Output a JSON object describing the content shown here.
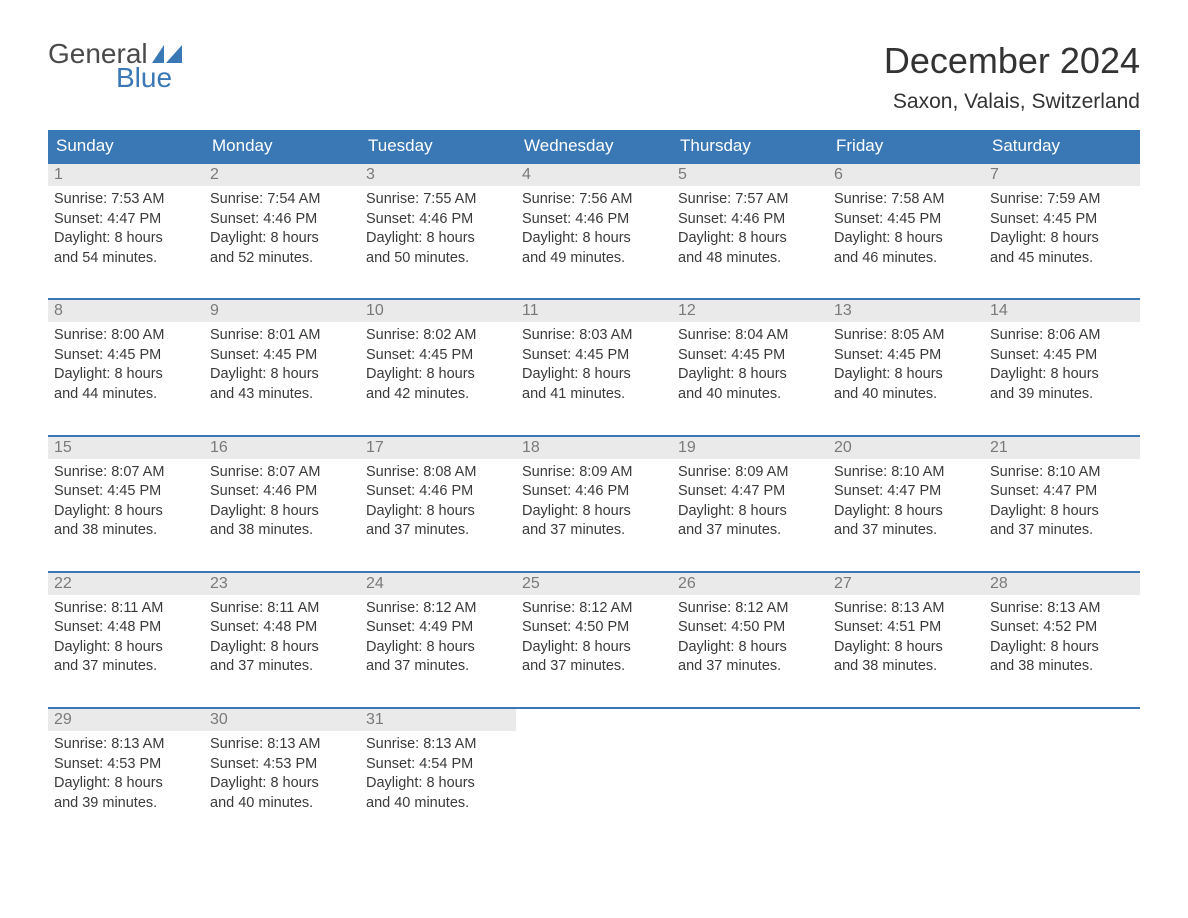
{
  "brand": {
    "general": "General",
    "blue": "Blue",
    "flag_color": "#3a78b5"
  },
  "header": {
    "month_title": "December 2024",
    "location": "Saxon, Valais, Switzerland"
  },
  "colors": {
    "header_bg": "#3a78b5",
    "week_border": "#3a78b5",
    "daynum_bg": "#eaeaea",
    "daynum_text": "#7a7a7a",
    "body_text": "#3a3a3a",
    "page_bg": "#ffffff"
  },
  "typography": {
    "month_title_fontsize": 36,
    "location_fontsize": 21,
    "dow_fontsize": 17,
    "daynum_fontsize": 16,
    "body_fontsize": 14.5
  },
  "calendar": {
    "type": "table",
    "days_of_week": [
      "Sunday",
      "Monday",
      "Tuesday",
      "Wednesday",
      "Thursday",
      "Friday",
      "Saturday"
    ],
    "weeks": [
      [
        {
          "n": "1",
          "sunrise": "Sunrise: 7:53 AM",
          "sunset": "Sunset: 4:47 PM",
          "dl1": "Daylight: 8 hours",
          "dl2": "and 54 minutes."
        },
        {
          "n": "2",
          "sunrise": "Sunrise: 7:54 AM",
          "sunset": "Sunset: 4:46 PM",
          "dl1": "Daylight: 8 hours",
          "dl2": "and 52 minutes."
        },
        {
          "n": "3",
          "sunrise": "Sunrise: 7:55 AM",
          "sunset": "Sunset: 4:46 PM",
          "dl1": "Daylight: 8 hours",
          "dl2": "and 50 minutes."
        },
        {
          "n": "4",
          "sunrise": "Sunrise: 7:56 AM",
          "sunset": "Sunset: 4:46 PM",
          "dl1": "Daylight: 8 hours",
          "dl2": "and 49 minutes."
        },
        {
          "n": "5",
          "sunrise": "Sunrise: 7:57 AM",
          "sunset": "Sunset: 4:46 PM",
          "dl1": "Daylight: 8 hours",
          "dl2": "and 48 minutes."
        },
        {
          "n": "6",
          "sunrise": "Sunrise: 7:58 AM",
          "sunset": "Sunset: 4:45 PM",
          "dl1": "Daylight: 8 hours",
          "dl2": "and 46 minutes."
        },
        {
          "n": "7",
          "sunrise": "Sunrise: 7:59 AM",
          "sunset": "Sunset: 4:45 PM",
          "dl1": "Daylight: 8 hours",
          "dl2": "and 45 minutes."
        }
      ],
      [
        {
          "n": "8",
          "sunrise": "Sunrise: 8:00 AM",
          "sunset": "Sunset: 4:45 PM",
          "dl1": "Daylight: 8 hours",
          "dl2": "and 44 minutes."
        },
        {
          "n": "9",
          "sunrise": "Sunrise: 8:01 AM",
          "sunset": "Sunset: 4:45 PM",
          "dl1": "Daylight: 8 hours",
          "dl2": "and 43 minutes."
        },
        {
          "n": "10",
          "sunrise": "Sunrise: 8:02 AM",
          "sunset": "Sunset: 4:45 PM",
          "dl1": "Daylight: 8 hours",
          "dl2": "and 42 minutes."
        },
        {
          "n": "11",
          "sunrise": "Sunrise: 8:03 AM",
          "sunset": "Sunset: 4:45 PM",
          "dl1": "Daylight: 8 hours",
          "dl2": "and 41 minutes."
        },
        {
          "n": "12",
          "sunrise": "Sunrise: 8:04 AM",
          "sunset": "Sunset: 4:45 PM",
          "dl1": "Daylight: 8 hours",
          "dl2": "and 40 minutes."
        },
        {
          "n": "13",
          "sunrise": "Sunrise: 8:05 AM",
          "sunset": "Sunset: 4:45 PM",
          "dl1": "Daylight: 8 hours",
          "dl2": "and 40 minutes."
        },
        {
          "n": "14",
          "sunrise": "Sunrise: 8:06 AM",
          "sunset": "Sunset: 4:45 PM",
          "dl1": "Daylight: 8 hours",
          "dl2": "and 39 minutes."
        }
      ],
      [
        {
          "n": "15",
          "sunrise": "Sunrise: 8:07 AM",
          "sunset": "Sunset: 4:45 PM",
          "dl1": "Daylight: 8 hours",
          "dl2": "and 38 minutes."
        },
        {
          "n": "16",
          "sunrise": "Sunrise: 8:07 AM",
          "sunset": "Sunset: 4:46 PM",
          "dl1": "Daylight: 8 hours",
          "dl2": "and 38 minutes."
        },
        {
          "n": "17",
          "sunrise": "Sunrise: 8:08 AM",
          "sunset": "Sunset: 4:46 PM",
          "dl1": "Daylight: 8 hours",
          "dl2": "and 37 minutes."
        },
        {
          "n": "18",
          "sunrise": "Sunrise: 8:09 AM",
          "sunset": "Sunset: 4:46 PM",
          "dl1": "Daylight: 8 hours",
          "dl2": "and 37 minutes."
        },
        {
          "n": "19",
          "sunrise": "Sunrise: 8:09 AM",
          "sunset": "Sunset: 4:47 PM",
          "dl1": "Daylight: 8 hours",
          "dl2": "and 37 minutes."
        },
        {
          "n": "20",
          "sunrise": "Sunrise: 8:10 AM",
          "sunset": "Sunset: 4:47 PM",
          "dl1": "Daylight: 8 hours",
          "dl2": "and 37 minutes."
        },
        {
          "n": "21",
          "sunrise": "Sunrise: 8:10 AM",
          "sunset": "Sunset: 4:47 PM",
          "dl1": "Daylight: 8 hours",
          "dl2": "and 37 minutes."
        }
      ],
      [
        {
          "n": "22",
          "sunrise": "Sunrise: 8:11 AM",
          "sunset": "Sunset: 4:48 PM",
          "dl1": "Daylight: 8 hours",
          "dl2": "and 37 minutes."
        },
        {
          "n": "23",
          "sunrise": "Sunrise: 8:11 AM",
          "sunset": "Sunset: 4:48 PM",
          "dl1": "Daylight: 8 hours",
          "dl2": "and 37 minutes."
        },
        {
          "n": "24",
          "sunrise": "Sunrise: 8:12 AM",
          "sunset": "Sunset: 4:49 PM",
          "dl1": "Daylight: 8 hours",
          "dl2": "and 37 minutes."
        },
        {
          "n": "25",
          "sunrise": "Sunrise: 8:12 AM",
          "sunset": "Sunset: 4:50 PM",
          "dl1": "Daylight: 8 hours",
          "dl2": "and 37 minutes."
        },
        {
          "n": "26",
          "sunrise": "Sunrise: 8:12 AM",
          "sunset": "Sunset: 4:50 PM",
          "dl1": "Daylight: 8 hours",
          "dl2": "and 37 minutes."
        },
        {
          "n": "27",
          "sunrise": "Sunrise: 8:13 AM",
          "sunset": "Sunset: 4:51 PM",
          "dl1": "Daylight: 8 hours",
          "dl2": "and 38 minutes."
        },
        {
          "n": "28",
          "sunrise": "Sunrise: 8:13 AM",
          "sunset": "Sunset: 4:52 PM",
          "dl1": "Daylight: 8 hours",
          "dl2": "and 38 minutes."
        }
      ],
      [
        {
          "n": "29",
          "sunrise": "Sunrise: 8:13 AM",
          "sunset": "Sunset: 4:53 PM",
          "dl1": "Daylight: 8 hours",
          "dl2": "and 39 minutes."
        },
        {
          "n": "30",
          "sunrise": "Sunrise: 8:13 AM",
          "sunset": "Sunset: 4:53 PM",
          "dl1": "Daylight: 8 hours",
          "dl2": "and 40 minutes."
        },
        {
          "n": "31",
          "sunrise": "Sunrise: 8:13 AM",
          "sunset": "Sunset: 4:54 PM",
          "dl1": "Daylight: 8 hours",
          "dl2": "and 40 minutes."
        },
        null,
        null,
        null,
        null
      ]
    ]
  }
}
